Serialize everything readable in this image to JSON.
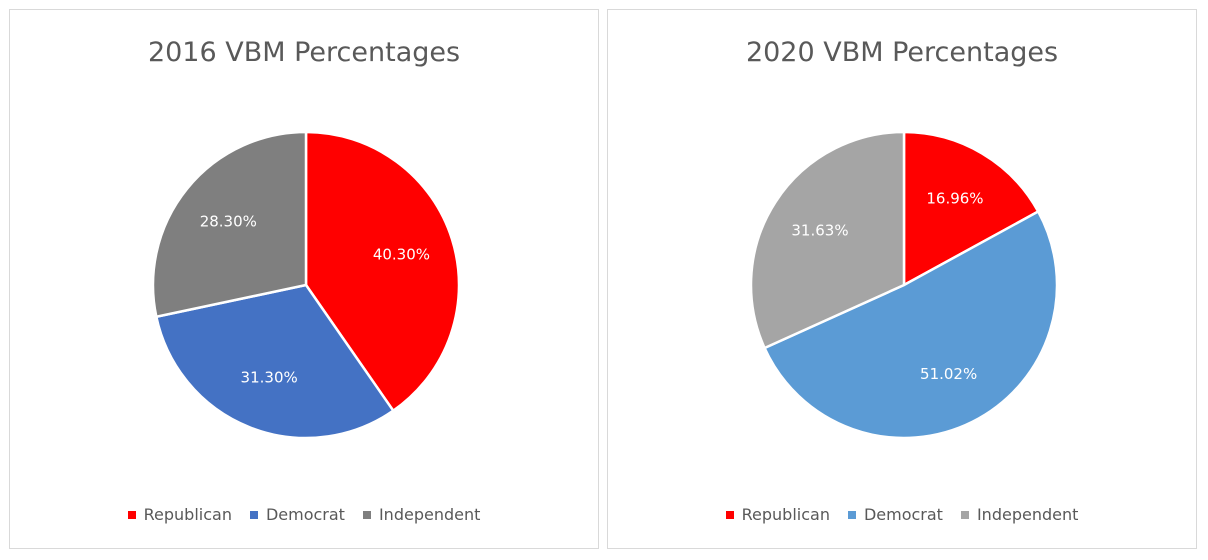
{
  "chart_data": [
    {
      "type": "pie",
      "title": "2016 VBM Percentages",
      "categories": [
        "Republican",
        "Democrat",
        "Independent"
      ],
      "values": [
        40.3,
        31.3,
        28.3
      ],
      "labels": [
        "40.30%",
        "31.30%",
        "28.30%"
      ],
      "colors": [
        "#ff0000",
        "#4472c4",
        "#7f7f7f"
      ],
      "legend": "bottom"
    },
    {
      "type": "pie",
      "title": "2020 VBM Percentages",
      "categories": [
        "Republican",
        "Democrat",
        "Independent"
      ],
      "values": [
        16.96,
        51.02,
        31.63
      ],
      "labels": [
        "16.96%",
        "51.02%",
        "31.63%"
      ],
      "colors": [
        "#ff0000",
        "#5b9bd5",
        "#a5a5a5"
      ],
      "legend": "bottom"
    }
  ]
}
